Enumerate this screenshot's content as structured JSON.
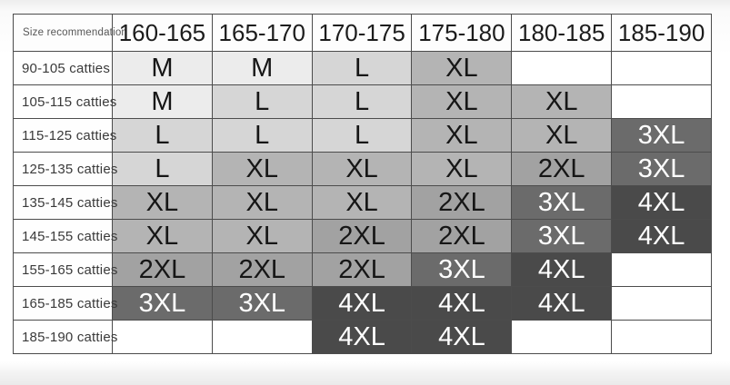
{
  "chart_data": {
    "type": "table",
    "corner_label": "Size recommendation",
    "columns": [
      "160-165",
      "165-170",
      "170-175",
      "175-180",
      "180-185",
      "185-190"
    ],
    "rows": [
      {
        "label": "90-105 catties",
        "cells": [
          "M",
          "M",
          "L",
          "XL",
          "",
          ""
        ]
      },
      {
        "label": "105-115 catties",
        "cells": [
          "M",
          "L",
          "L",
          "XL",
          "XL",
          ""
        ]
      },
      {
        "label": "115-125 catties",
        "cells": [
          "L",
          "L",
          "L",
          "XL",
          "XL",
          "3XL"
        ]
      },
      {
        "label": "125-135 catties",
        "cells": [
          "L",
          "XL",
          "XL",
          "XL",
          "2XL",
          "3XL"
        ]
      },
      {
        "label": "135-145 catties",
        "cells": [
          "XL",
          "XL",
          "XL",
          "2XL",
          "3XL",
          "4XL"
        ]
      },
      {
        "label": "145-155 catties",
        "cells": [
          "XL",
          "XL",
          "2XL",
          "2XL",
          "3XL",
          "4XL"
        ]
      },
      {
        "label": "155-165 catties",
        "cells": [
          "2XL",
          "2XL",
          "2XL",
          "3XL",
          "4XL",
          ""
        ]
      },
      {
        "label": "165-185 catties",
        "cells": [
          "3XL",
          "3XL",
          "4XL",
          "4XL",
          "4XL",
          ""
        ]
      },
      {
        "label": "185-190 catties",
        "cells": [
          "",
          "",
          "4XL",
          "4XL",
          "",
          ""
        ]
      }
    ],
    "size_colors": {
      "M": {
        "bg": "#ececec",
        "text": "#161616"
      },
      "L": {
        "bg": "#d6d6d6",
        "text": "#161616"
      },
      "XL": {
        "bg": "#b4b4b4",
        "text": "#161616"
      },
      "2XL": {
        "bg": "#a2a2a2",
        "text": "#161616"
      },
      "3XL": {
        "bg": "#6b6b6b",
        "text": "#ffffff"
      },
      "4XL": {
        "bg": "#4a4a4a",
        "text": "#ffffff"
      },
      "": {
        "bg": "#ffffff",
        "text": "#161616"
      }
    },
    "border_color": "#4c4c4c"
  }
}
